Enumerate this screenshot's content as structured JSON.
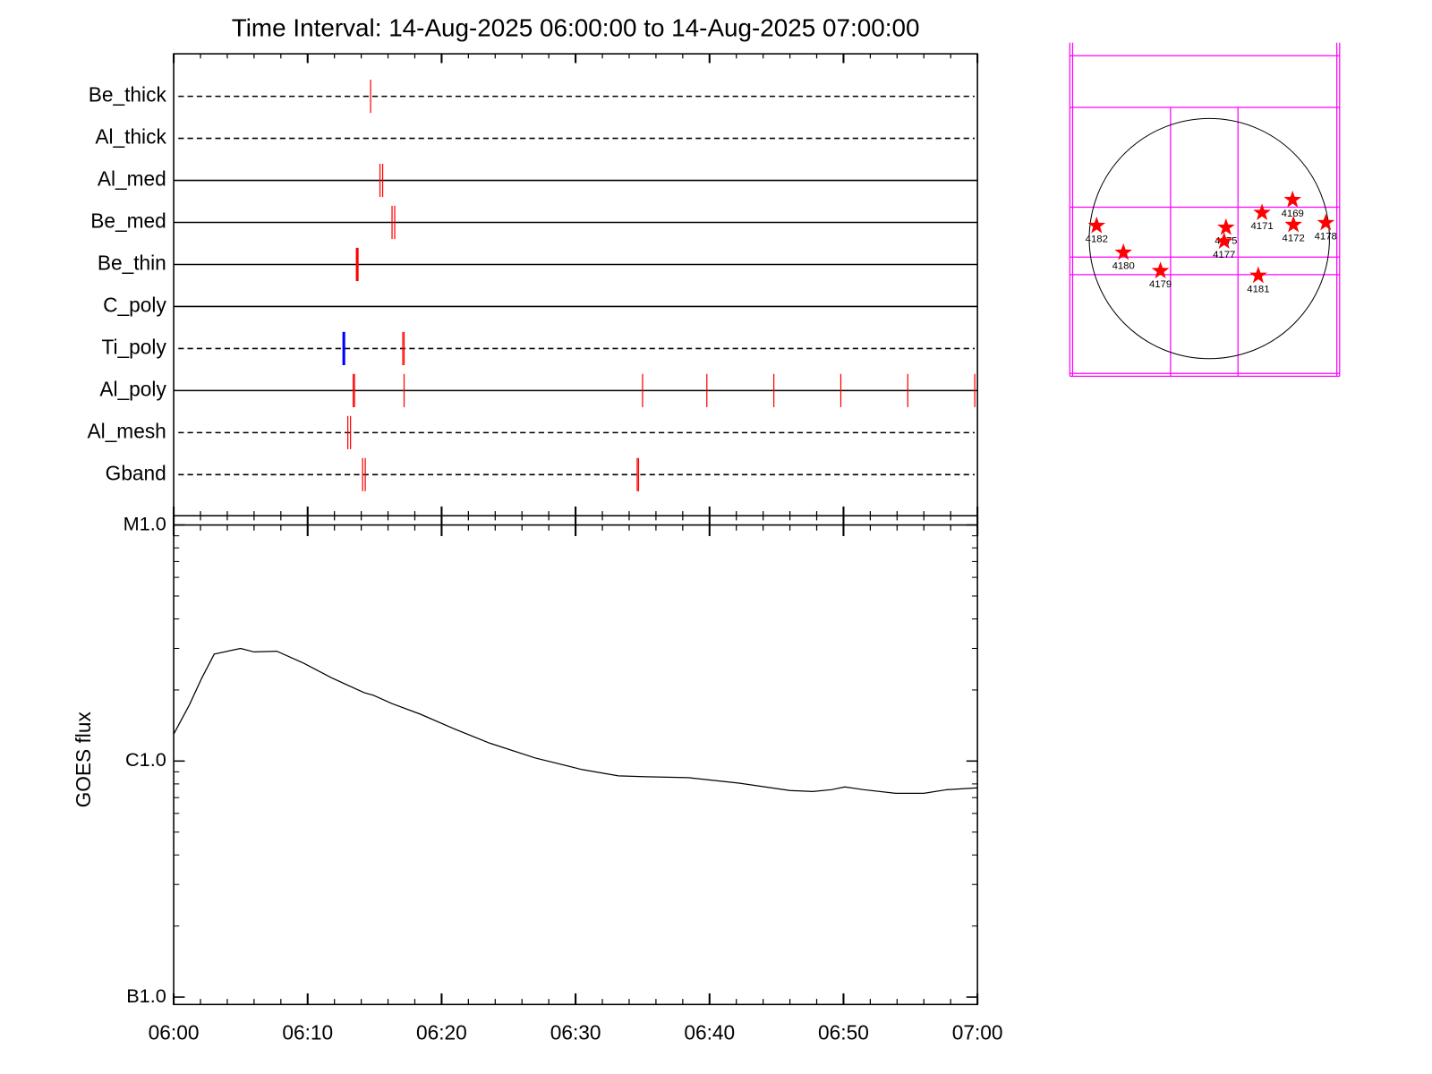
{
  "chart_data": [
    {
      "type": "timeline",
      "title": "Time Interval: 14-Aug-2025 06:00:00 to 14-Aug-2025 07:00:00",
      "categories": [
        "Be_thick",
        "Al_thick",
        "Al_med",
        "Be_med",
        "Be_thin",
        "C_poly",
        "Ti_poly",
        "Al_poly",
        "Al_mesh",
        "Gband"
      ],
      "dashed": [
        true,
        true,
        false,
        false,
        false,
        false,
        true,
        false,
        true,
        true
      ],
      "events": [
        [
          {
            "x": 14.7,
            "color": "#ff0000"
          }
        ],
        [],
        [
          {
            "x": 15.4,
            "color": "#ff0000"
          },
          {
            "x": 15.6,
            "color": "#ff0000"
          }
        ],
        [
          {
            "x": 16.3,
            "color": "#ff0000"
          },
          {
            "x": 16.5,
            "color": "#ff0000"
          }
        ],
        [
          {
            "x": 13.7,
            "color": "#ff0000",
            "bold": true
          }
        ],
        [],
        [
          {
            "x": 12.7,
            "color": "#0000ff",
            "bold": true
          },
          {
            "x": 17.1,
            "color": "#ff0000"
          },
          {
            "x": 17.2,
            "color": "#ff0000"
          }
        ],
        [
          {
            "x": 13.4,
            "color": "#ff0000"
          },
          {
            "x": 13.5,
            "color": "#ff0000"
          },
          {
            "x": 17.2,
            "color": "#ff0000"
          },
          {
            "x": 35.0,
            "color": "#ff0000"
          },
          {
            "x": 39.8,
            "color": "#ff0000"
          },
          {
            "x": 44.8,
            "color": "#ff0000"
          },
          {
            "x": 49.8,
            "color": "#ff0000"
          },
          {
            "x": 54.8,
            "color": "#ff0000"
          },
          {
            "x": 59.8,
            "color": "#ff0000"
          }
        ],
        [
          {
            "x": 13.0,
            "color": "#ff0000"
          },
          {
            "x": 13.2,
            "color": "#ff0000"
          }
        ],
        [
          {
            "x": 14.1,
            "color": "#ff0000"
          },
          {
            "x": 14.3,
            "color": "#ff0000"
          },
          {
            "x": 34.6,
            "color": "#ff0000"
          },
          {
            "x": 34.7,
            "color": "#ff0000"
          }
        ]
      ],
      "xlim": [
        0,
        60
      ],
      "xticks": [
        0,
        10,
        20,
        30,
        40,
        50,
        60
      ],
      "xminorticks": [
        2,
        4,
        6,
        8,
        12,
        14,
        16,
        18,
        22,
        24,
        26,
        28,
        32,
        34,
        36,
        38,
        42,
        44,
        46,
        48,
        52,
        54,
        56,
        58
      ]
    },
    {
      "type": "line",
      "ylabel": "GOES flux",
      "x": [
        0,
        1.17,
        2.07,
        3.03,
        5,
        6,
        7.7,
        9.7,
        11.8,
        14.2,
        14.9,
        16.3,
        18.4,
        20.8,
        23.6,
        27,
        30.5,
        33.2,
        35.3,
        38.4,
        42.2,
        46,
        47.7,
        49.1,
        50.1,
        51.5,
        53.9,
        56,
        57.7,
        60
      ],
      "values": [
        1.3e-06,
        1.73e-06,
        2.23e-06,
        2.84e-06,
        3e-06,
        2.9e-06,
        2.92e-06,
        2.6e-06,
        2.25e-06,
        1.95e-06,
        1.9e-06,
        1.75e-06,
        1.58e-06,
        1.38e-06,
        1.19e-06,
        1.03e-06,
        9.2e-07,
        8.66e-07,
        8.58e-07,
        8.5e-07,
        8.06e-07,
        7.5e-07,
        7.43e-07,
        7.56e-07,
        7.77e-07,
        7.56e-07,
        7.3e-07,
        7.3e-07,
        7.56e-07,
        7.7e-07
      ],
      "color": "#000000",
      "log_y": true,
      "ylim": [
        1e-07,
        1e-05
      ],
      "yticks": [
        {
          "value": 1e-07,
          "label": "B1.0"
        },
        {
          "value": 1e-06,
          "label": "C1.0"
        },
        {
          "value": 1e-05,
          "label": "M1.0"
        }
      ],
      "yminorticks": [
        2e-07,
        3e-07,
        4e-07,
        5e-07,
        6e-07,
        7e-07,
        8e-07,
        9e-07,
        2e-06,
        3e-06,
        4e-06,
        5e-06,
        6e-06,
        7e-06,
        8e-06,
        9e-06
      ],
      "xlim": [
        0,
        60
      ],
      "xticks": [
        {
          "value": 0,
          "label": "06:00"
        },
        {
          "value": 10,
          "label": "06:10"
        },
        {
          "value": 20,
          "label": "06:20"
        },
        {
          "value": 30,
          "label": "06:30"
        },
        {
          "value": 40,
          "label": "06:40"
        },
        {
          "value": 50,
          "label": "06:50"
        },
        {
          "value": 60,
          "label": "07:00"
        }
      ],
      "xminorticks": [
        2,
        4,
        6,
        8,
        12,
        14,
        16,
        18,
        22,
        24,
        26,
        28,
        32,
        34,
        36,
        38,
        42,
        44,
        46,
        48,
        52,
        54,
        56,
        58
      ]
    },
    {
      "type": "scatter",
      "labels": [
        "4182",
        "4180",
        "4179",
        "4175",
        "4177",
        "4171",
        "4169",
        "4172",
        "4178",
        "4181"
      ],
      "x": [
        -901,
        -687,
        -391,
        133,
        118,
        421,
        665,
        672,
        930,
        391
      ],
      "y": [
        103,
        -111,
        -258,
        89,
        -22,
        207,
        310,
        111,
        126,
        -295
      ],
      "color": "#ff0000",
      "xlim": [
        -1115,
        1041
      ],
      "ylim": [
        -1100,
        1566
      ]
    }
  ]
}
